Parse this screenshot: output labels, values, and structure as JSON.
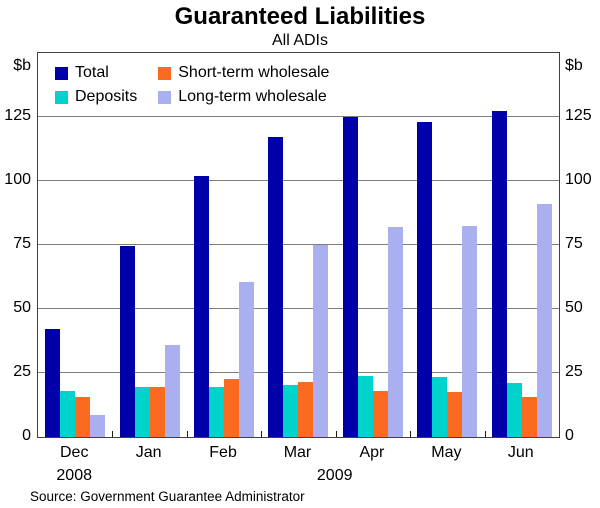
{
  "title": "Guaranteed Liabilities",
  "subtitle": "All ADIs",
  "unit_label_left": "$b",
  "unit_label_right": "$b",
  "source": "Source: Government Guarantee Administrator",
  "frame_color": "#404040",
  "gridline_color": "#7d7d7d",
  "chart_data": {
    "type": "bar",
    "title": "Guaranteed Liabilities",
    "subtitle": "All ADIs",
    "ylabel": "$b",
    "xlabel": "",
    "categories": [
      "Dec",
      "Jan",
      "Feb",
      "Mar",
      "Apr",
      "May",
      "Jun"
    ],
    "year_labels": [
      {
        "text": "2008",
        "span": [
          0,
          0
        ]
      },
      {
        "text": "2009",
        "span": [
          1,
          6
        ]
      }
    ],
    "series": [
      {
        "name": "Total",
        "color": "#0000A8",
        "values": [
          42,
          74.5,
          102,
          117,
          125,
          123,
          127.5
        ]
      },
      {
        "name": "Deposits",
        "color": "#00D3CB",
        "values": [
          18,
          19.5,
          19.5,
          20.5,
          24,
          23.5,
          21
        ]
      },
      {
        "name": "Short-term wholesale",
        "color": "#FA6B21",
        "values": [
          15.5,
          19.5,
          22.5,
          21.5,
          18,
          17.5,
          15.5
        ]
      },
      {
        "name": "Long-term wholesale",
        "color": "#A9AFEF",
        "values": [
          8.5,
          36,
          60.5,
          75,
          82,
          82.5,
          91
        ]
      }
    ],
    "ylim": [
      0,
      150
    ],
    "yticks": [
      0,
      25,
      50,
      75,
      100,
      125
    ],
    "gridlines": [
      25,
      50,
      75,
      100,
      125
    ],
    "grid": true,
    "legend_position": "top-left-inside"
  }
}
